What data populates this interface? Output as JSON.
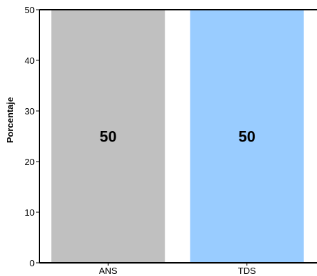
{
  "chart_data": {
    "type": "bar",
    "categories": [
      "ANS",
      "TDS"
    ],
    "values": [
      50,
      50
    ],
    "data_labels": [
      "50",
      "50"
    ],
    "colors": [
      "#c0c0c0",
      "#99ccff"
    ],
    "ylabel": "Porcentaje",
    "ylim": [
      0,
      50
    ],
    "yticks": [
      "0",
      "10",
      "20",
      "30",
      "40",
      "50"
    ],
    "grid": false,
    "legend": "none"
  }
}
